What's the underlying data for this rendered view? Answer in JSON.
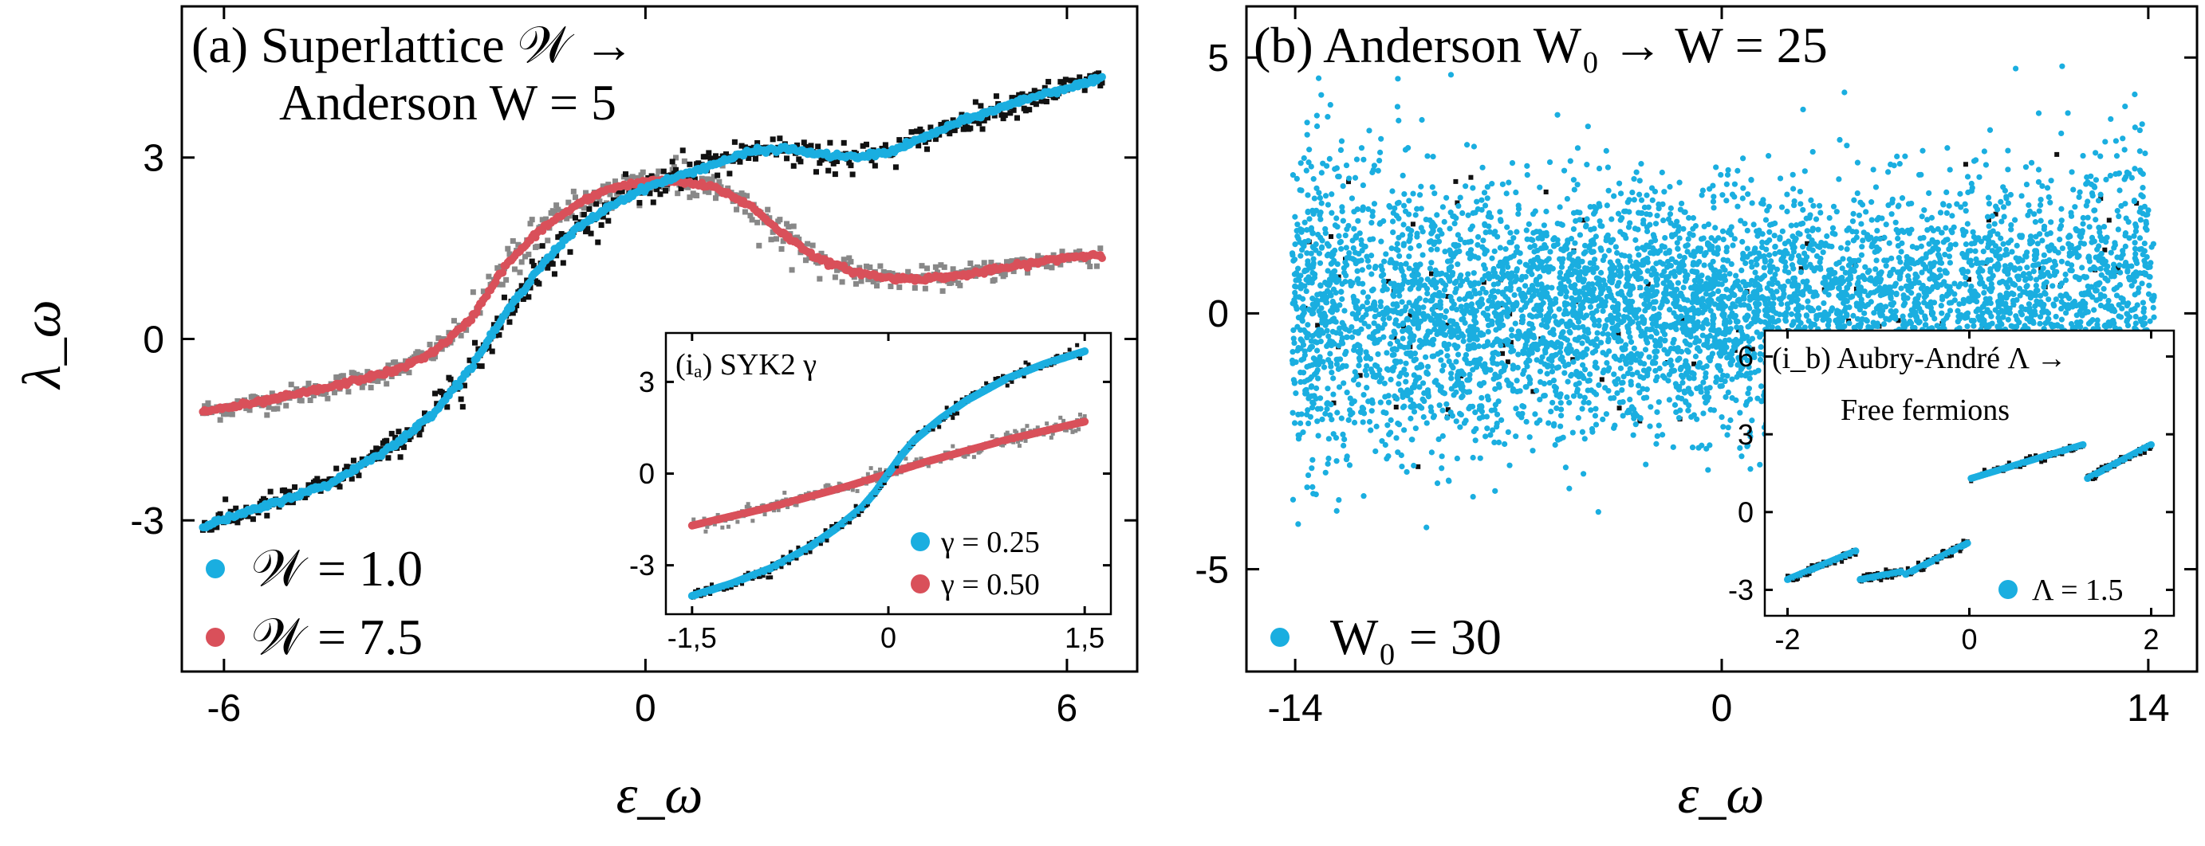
{
  "figure": {
    "ylabel": "λ_ω",
    "xlabel": "ε_ω"
  },
  "colors": {
    "blue": "#1aaee0",
    "red": "#d9505a",
    "black": "#111111",
    "gray": "#888888"
  },
  "chart_data": [
    {
      "id": "panel-a",
      "type": "scatter",
      "title_line1": "(a) Superlattice 𝒲 →",
      "title_line2": "Anderson W = 5",
      "xlabel": "ε_ω",
      "ylabel": "λ_ω",
      "xlim": [
        -6.6,
        7.0
      ],
      "ylim": [
        -5.5,
        5.5
      ],
      "xticks": [
        -6,
        0,
        6
      ],
      "xtick_labels": [
        "-6",
        "0",
        "6"
      ],
      "yticks": [
        -3,
        0,
        3
      ],
      "ytick_labels": [
        "-3",
        "0",
        "3"
      ],
      "legend_position": "bottom-left",
      "series": [
        {
          "name": "𝒲 = 1.0",
          "color": "blue",
          "x": [
            -6.3,
            -5.5,
            -4.5,
            -3.5,
            -3.0,
            -2.5,
            -2.0,
            -1.5,
            -1.0,
            -0.5,
            0.0,
            0.5,
            1.0,
            1.5,
            2.0,
            2.5,
            3.0,
            3.5,
            4.0,
            4.5,
            5.0,
            5.5,
            6.0,
            6.5
          ],
          "y": [
            -3.1,
            -2.8,
            -2.4,
            -1.7,
            -1.2,
            -0.5,
            0.4,
            1.2,
            1.8,
            2.2,
            2.5,
            2.7,
            2.9,
            3.1,
            3.15,
            3.05,
            3.0,
            3.1,
            3.35,
            3.6,
            3.8,
            4.0,
            4.15,
            4.3
          ]
        },
        {
          "name": "𝒲 = 7.5",
          "color": "red",
          "x": [
            -6.3,
            -5.5,
            -4.5,
            -3.5,
            -3.0,
            -2.5,
            -2.0,
            -1.5,
            -1.0,
            -0.5,
            0.0,
            0.5,
            1.0,
            1.5,
            2.0,
            2.5,
            3.0,
            3.5,
            4.0,
            4.5,
            5.0,
            5.5,
            6.0,
            6.5
          ],
          "y": [
            -1.2,
            -1.05,
            -0.8,
            -0.5,
            -0.2,
            0.3,
            1.2,
            1.8,
            2.2,
            2.5,
            2.6,
            2.6,
            2.5,
            2.2,
            1.7,
            1.3,
            1.1,
            1.0,
            1.0,
            1.05,
            1.15,
            1.25,
            1.35,
            1.4
          ]
        },
        {
          "name": "black",
          "color": "black",
          "x": [
            -6.3,
            -5.5,
            -4.5,
            -3.5,
            -3.0,
            -2.5,
            -2.0,
            -1.5,
            -1.0,
            -0.5,
            0.0,
            0.5,
            1.0,
            1.5,
            2.0,
            2.5,
            3.0,
            3.5,
            4.0,
            4.5,
            5.0,
            5.5,
            6.0,
            6.5
          ],
          "y": [
            -3.1,
            -2.8,
            -2.4,
            -1.7,
            -1.2,
            -0.5,
            0.4,
            1.2,
            1.8,
            2.2,
            2.5,
            2.7,
            2.9,
            3.1,
            3.15,
            3.05,
            3.0,
            3.1,
            3.35,
            3.6,
            3.8,
            4.0,
            4.15,
            4.3
          ]
        },
        {
          "name": "gray",
          "color": "gray",
          "x": [
            -6.3,
            -5.5,
            -4.5,
            -3.5,
            -3.0,
            -2.5,
            -2.0,
            -1.5,
            -1.0,
            -0.5,
            0.0,
            0.5,
            1.0,
            1.5,
            2.0,
            2.5,
            3.0,
            3.5,
            4.0,
            4.5,
            5.0,
            5.5,
            6.0,
            6.5
          ],
          "y": [
            -1.2,
            -1.05,
            -0.8,
            -0.5,
            -0.2,
            0.3,
            1.2,
            1.8,
            2.2,
            2.5,
            2.6,
            2.6,
            2.5,
            2.2,
            1.7,
            1.3,
            1.1,
            1.0,
            1.0,
            1.05,
            1.15,
            1.25,
            1.35,
            1.4
          ]
        }
      ]
    },
    {
      "id": "inset-ia",
      "type": "scatter",
      "title": "(iₐ) SYK2 γ",
      "xlim": [
        -1.7,
        1.7
      ],
      "ylim": [
        -4.6,
        4.6
      ],
      "xticks": [
        -1.5,
        0,
        1.5
      ],
      "xtick_labels": [
        "-1,5",
        "0",
        "1,5"
      ],
      "yticks": [
        -3,
        0,
        3
      ],
      "ytick_labels": [
        "-3",
        "0",
        "3"
      ],
      "legend_position": "bottom-right",
      "series": [
        {
          "name": "γ = 0.25",
          "color": "blue",
          "x": [
            -1.5,
            -1.2,
            -0.9,
            -0.6,
            -0.4,
            -0.2,
            -0.1,
            0.0,
            0.1,
            0.2,
            0.4,
            0.6,
            0.9,
            1.2,
            1.5
          ],
          "y": [
            -4.0,
            -3.6,
            -3.1,
            -2.4,
            -1.8,
            -1.1,
            -0.6,
            0.0,
            0.6,
            1.1,
            1.8,
            2.4,
            3.1,
            3.6,
            4.0
          ]
        },
        {
          "name": "γ = 0.50",
          "color": "red",
          "x": [
            -1.5,
            -1.2,
            -0.9,
            -0.6,
            -0.3,
            0.0,
            0.3,
            0.6,
            0.9,
            1.2,
            1.5
          ],
          "y": [
            -1.7,
            -1.4,
            -1.1,
            -0.75,
            -0.4,
            0.0,
            0.4,
            0.75,
            1.1,
            1.4,
            1.7
          ]
        }
      ]
    },
    {
      "id": "panel-b",
      "type": "scatter",
      "title": "(b) Anderson W₀ → W = 25",
      "xlabel": "ε_ω",
      "xlim": [
        -15.6,
        15.6
      ],
      "ylim": [
        -7.0,
        6.0
      ],
      "xticks": [
        -14,
        0,
        14
      ],
      "xtick_labels": [
        "-14",
        "0",
        "14"
      ],
      "yticks": [
        -5,
        0,
        5
      ],
      "ytick_labels": [
        "-5",
        "0",
        "5"
      ],
      "legend_position": "bottom-left",
      "series": [
        {
          "name": "W₀ = 30",
          "color": "blue",
          "x_range": [
            -14.1,
            14.2
          ],
          "mean": 0.0,
          "spread_center": 1.1,
          "spread_edges": 1.6,
          "n_points": 6000
        }
      ]
    },
    {
      "id": "inset-ib",
      "type": "scatter",
      "title_line1": "(i_b) Aubry-André Λ →",
      "title_line2": "Free fermions",
      "xlim": [
        -2.25,
        2.25
      ],
      "ylim": [
        -4.0,
        7.0
      ],
      "xticks": [
        -2,
        0,
        2
      ],
      "xtick_labels": [
        "-2",
        "0",
        "2"
      ],
      "yticks": [
        -3,
        0,
        3,
        6
      ],
      "ytick_labels": [
        "-3",
        "0",
        "3",
        "6"
      ],
      "legend_position": "bottom-right",
      "series": [
        {
          "name": "Λ = 1.5",
          "color": "blue",
          "segments": [
            {
              "x": [
                -2.0,
                -1.25
              ],
              "y": [
                -2.6,
                -1.5
              ]
            },
            {
              "x": [
                -1.2,
                -0.75
              ],
              "y": [
                -2.6,
                -2.3
              ]
            },
            {
              "x": [
                -0.7,
                -0.02
              ],
              "y": [
                -2.4,
                -1.2
              ]
            },
            {
              "x": [
                0.02,
                1.25
              ],
              "y": [
                1.3,
                2.6
              ]
            },
            {
              "x": [
                1.3,
                2.0
              ],
              "y": [
                1.3,
                2.6
              ]
            }
          ]
        }
      ]
    }
  ]
}
